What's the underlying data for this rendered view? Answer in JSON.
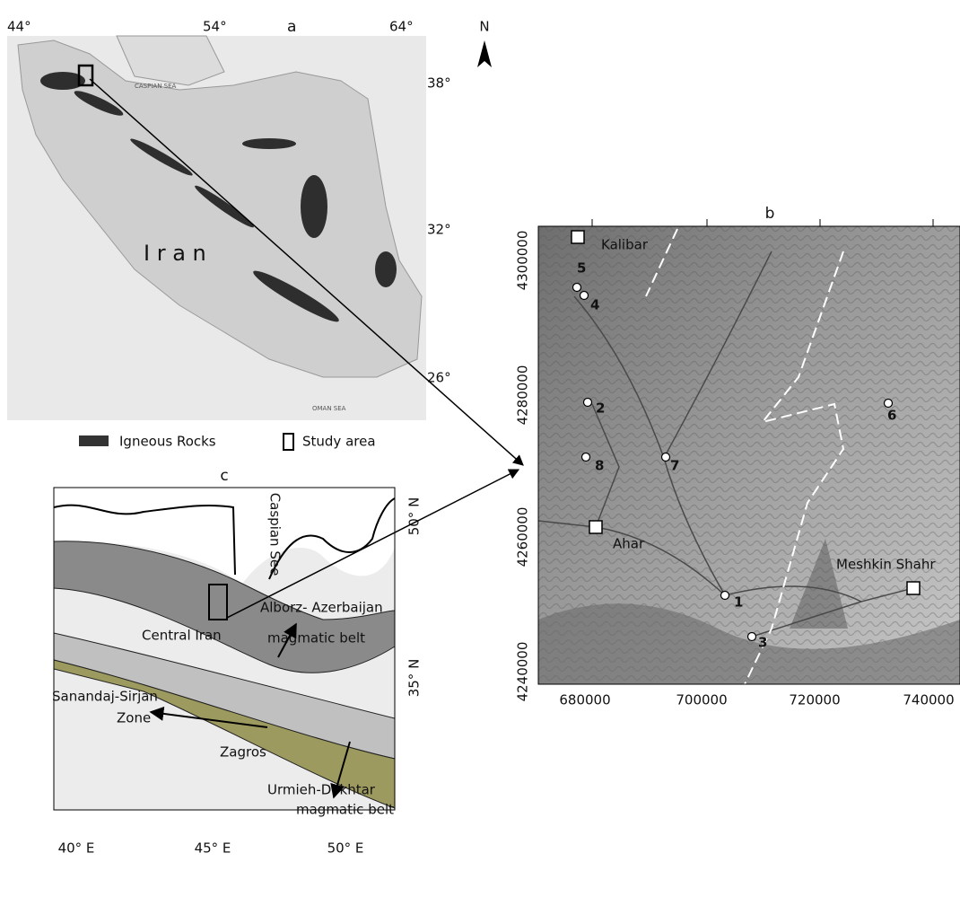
{
  "panel_a": {
    "label": "a",
    "lon_labels": [
      "44°",
      "54°",
      "64°"
    ],
    "lat_labels": [
      "38°",
      "32°",
      "26°"
    ],
    "country": "I r a n",
    "sea_labels": [
      "CASPIAN SEA",
      "OMAN SEA"
    ],
    "north": "N",
    "legend": [
      "Igneous Rocks",
      "Study area"
    ]
  },
  "panel_b": {
    "label": "b",
    "places": [
      "Kalibar",
      "Ahar",
      "Meshkin Shahr"
    ],
    "samples": [
      "1",
      "2",
      "3",
      "4",
      "5",
      "6",
      "7",
      "8"
    ],
    "xticks": [
      680000,
      700000,
      720000,
      740000
    ],
    "yticks": [
      4240000,
      4260000,
      4280000,
      4300000
    ]
  },
  "panel_c": {
    "label": "c",
    "lon_labels": [
      "40° E",
      "45° E",
      "50° E"
    ],
    "lat_labels": [
      "50° N",
      "35° N"
    ],
    "sea": "Caspian See",
    "units": [
      "Alborz- Azerbaijan",
      "magmatic belt",
      "Central Iran",
      "Sanandaj-Sirjan",
      "Zone",
      "Zagros",
      "Urmieh-Dokhtar",
      "magmatic belt"
    ]
  }
}
